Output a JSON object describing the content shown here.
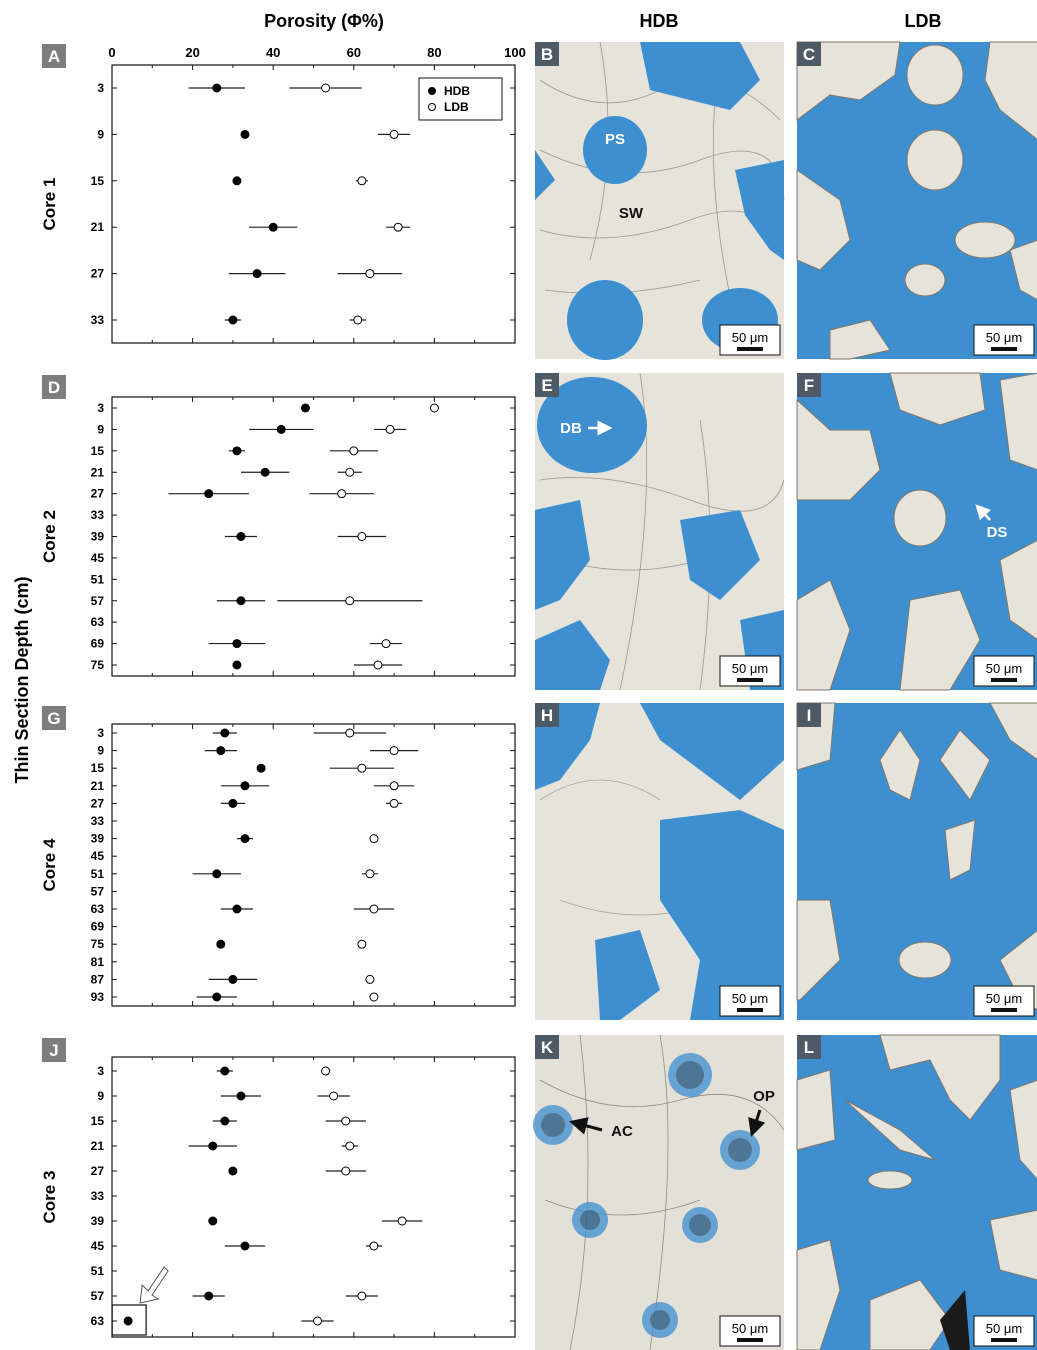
{
  "figure": {
    "porosity_header": "Porosity (Φ%)",
    "hdb_header": "HDB",
    "ldb_header": "LDB",
    "y_axis_label": "Thin Section Depth (cm)",
    "legend": {
      "hdb": "HDB",
      "ldb": "LDB"
    },
    "x_ticks": [
      "0",
      "20",
      "40",
      "60",
      "80",
      "100"
    ],
    "scale_bar_label": "50 μm",
    "colors": {
      "pore_blue": "#3d8fd0",
      "matrix": "#e7e4dc",
      "panel_letter_bg": "#7d7d7d",
      "panel_letter_bg_dark": "#4e5a66"
    }
  },
  "chart_data": [
    {
      "type": "scatter",
      "panel": "A",
      "core": "Core 1",
      "xlim": [
        0,
        100
      ],
      "xlabel": "Porosity (Φ%)",
      "ylabel": "Thin Section Depth (cm)",
      "depths": [
        "3",
        "9",
        "15",
        "21",
        "27",
        "33"
      ],
      "series": [
        {
          "name": "HDB",
          "values": [
            26,
            33,
            31,
            40,
            36,
            30
          ],
          "err": [
            7,
            0,
            0,
            6,
            7,
            2
          ]
        },
        {
          "name": "LDB",
          "values": [
            53,
            70,
            62,
            71,
            64,
            61
          ],
          "err": [
            9,
            4,
            1.5,
            3,
            8,
            2
          ]
        }
      ],
      "legend_position": "top-right",
      "show_legend": true
    },
    {
      "type": "scatter",
      "panel": "D",
      "core": "Core 2",
      "xlim": [
        0,
        100
      ],
      "depths": [
        "3",
        "9",
        "15",
        "21",
        "27",
        "33",
        "39",
        "45",
        "51",
        "57",
        "63",
        "69",
        "75"
      ],
      "series": [
        {
          "name": "HDB",
          "values": [
            48,
            42,
            31,
            38,
            24,
            null,
            32,
            null,
            null,
            32,
            null,
            31,
            31
          ],
          "err": [
            0,
            8,
            2,
            6,
            10,
            null,
            4,
            null,
            null,
            6,
            null,
            7,
            0
          ]
        },
        {
          "name": "LDB",
          "values": [
            80,
            69,
            60,
            59,
            57,
            null,
            62,
            null,
            null,
            59,
            null,
            68,
            66
          ],
          "err": [
            0,
            4,
            6,
            3,
            8,
            null,
            6,
            null,
            null,
            18,
            null,
            4,
            6
          ]
        }
      ],
      "show_legend": false
    },
    {
      "type": "scatter",
      "panel": "G",
      "core": "Core 4",
      "xlim": [
        0,
        100
      ],
      "depths": [
        "3",
        "9",
        "15",
        "21",
        "27",
        "33",
        "39",
        "45",
        "51",
        "57",
        "63",
        "69",
        "75",
        "81",
        "87",
        "93"
      ],
      "series": [
        {
          "name": "HDB",
          "values": [
            28,
            27,
            37,
            33,
            30,
            null,
            33,
            null,
            26,
            null,
            31,
            null,
            27,
            null,
            30,
            26
          ],
          "err": [
            3,
            4,
            0,
            6,
            3,
            null,
            2,
            null,
            6,
            null,
            4,
            null,
            0,
            null,
            6,
            5
          ]
        },
        {
          "name": "LDB",
          "values": [
            59,
            70,
            62,
            70,
            70,
            null,
            65,
            null,
            64,
            null,
            65,
            null,
            62,
            null,
            64,
            65
          ],
          "err": [
            9,
            6,
            8,
            5,
            2,
            null,
            0,
            null,
            2,
            null,
            5,
            null,
            1,
            null,
            1,
            0
          ]
        }
      ],
      "show_legend": false
    },
    {
      "type": "scatter",
      "panel": "J",
      "core": "Core 3",
      "xlim": [
        0,
        100
      ],
      "depths": [
        "3",
        "9",
        "15",
        "21",
        "27",
        "33",
        "39",
        "45",
        "51",
        "57",
        "63"
      ],
      "series": [
        {
          "name": "HDB",
          "values": [
            28,
            32,
            28,
            25,
            30,
            null,
            25,
            33,
            null,
            24,
            4
          ],
          "err": [
            2,
            5,
            3,
            6,
            0,
            null,
            0,
            5,
            null,
            4,
            0
          ]
        },
        {
          "name": "LDB",
          "values": [
            53,
            55,
            58,
            59,
            58,
            null,
            72,
            65,
            null,
            62,
            51
          ],
          "err": [
            0,
            4,
            5,
            2,
            5,
            null,
            5,
            2,
            null,
            4,
            4
          ]
        }
      ],
      "highlighted_point": {
        "depth": "63",
        "series": "HDB"
      },
      "show_legend": false
    }
  ],
  "panels": [
    {
      "letter": "A",
      "core": "Core 1"
    },
    {
      "letter": "B",
      "labels": [
        "PS",
        "SW"
      ]
    },
    {
      "letter": "C"
    },
    {
      "letter": "D",
      "core": "Core 2"
    },
    {
      "letter": "E",
      "labels": [
        "DB"
      ]
    },
    {
      "letter": "F",
      "labels": [
        "DS"
      ]
    },
    {
      "letter": "G",
      "core": "Core 4"
    },
    {
      "letter": "H"
    },
    {
      "letter": "I"
    },
    {
      "letter": "J",
      "core": "Core 3"
    },
    {
      "letter": "K",
      "labels": [
        "AC",
        "OP"
      ]
    },
    {
      "letter": "L"
    }
  ]
}
